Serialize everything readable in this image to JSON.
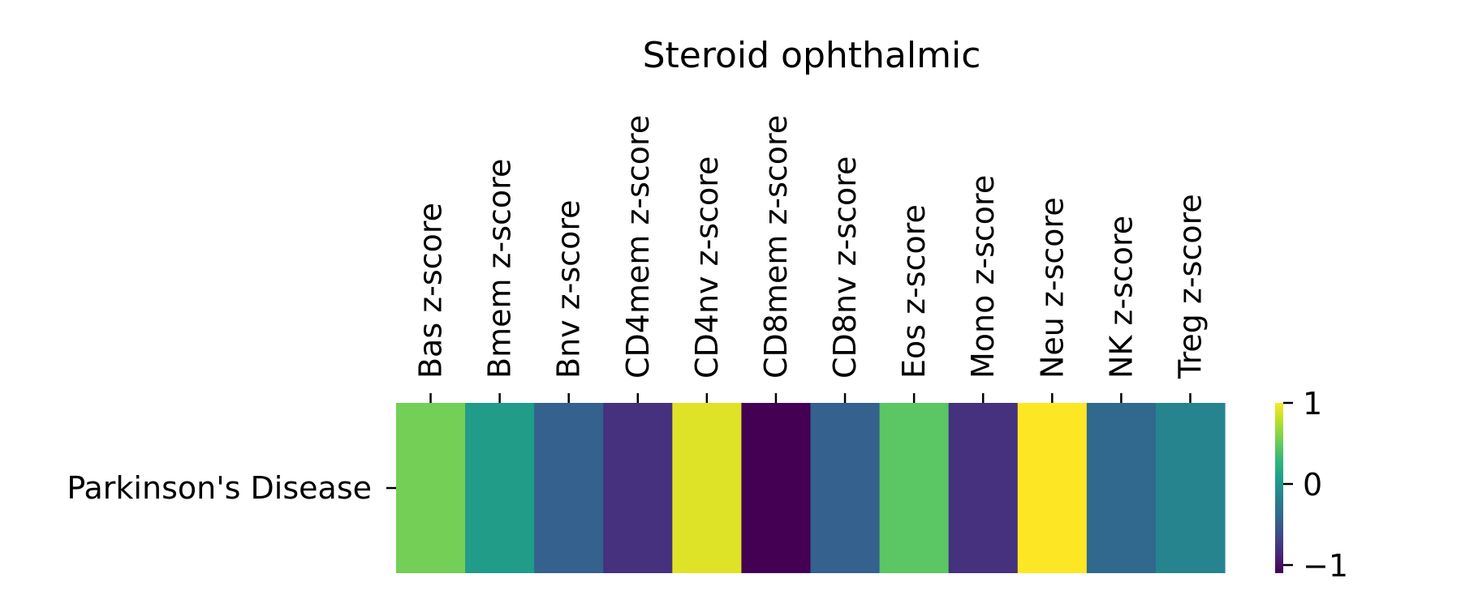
{
  "chart_data": {
    "type": "heatmap",
    "title": "Steroid ophthalmic",
    "xlabel": "",
    "ylabel": "",
    "columns": [
      "Bas z-score",
      "Bmem z-score",
      "Bnv z-score",
      "CD4mem z-score",
      "CD4nv z-score",
      "CD8mem z-score",
      "CD8nv z-score",
      "Eos z-score",
      "Mono z-score",
      "Neu z-score",
      "NK z-score",
      "Treg z-score"
    ],
    "rows": [
      "Parkinson's Disease"
    ],
    "values": [
      [
        0.55,
        0.05,
        -0.45,
        -0.8,
        0.9,
        -1.1,
        -0.45,
        0.45,
        -0.8,
        1.0,
        -0.4,
        -0.15
      ]
    ],
    "colorbar": {
      "colormap": "viridis",
      "vmin": -1.1,
      "vmax": 1.0,
      "ticks": [
        -1,
        0,
        1
      ],
      "tick_labels": [
        "−1",
        "0",
        "1"
      ]
    },
    "x_tick_position": "top",
    "grid": false,
    "colors": {
      "viridis_stops": [
        "#440154",
        "#482878",
        "#3e4989",
        "#31688e",
        "#26828e",
        "#1f9e89",
        "#35b779",
        "#6ece58",
        "#b5de2b",
        "#fde725"
      ]
    }
  }
}
